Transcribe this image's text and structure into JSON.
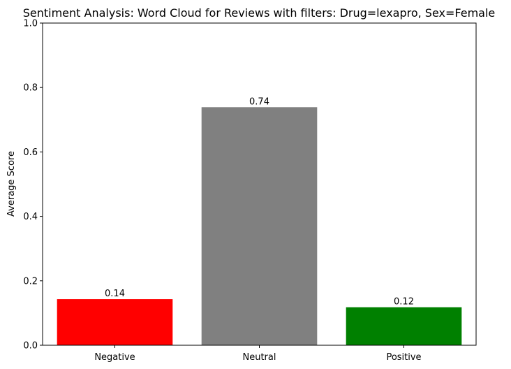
{
  "chart_data": {
    "type": "bar",
    "title": "Sentiment Analysis: Word Cloud for Reviews with filters: Drug=lexapro, Sex=Female",
    "xlabel": "",
    "ylabel": "Average Score",
    "categories": [
      "Negative",
      "Neutral",
      "Positive"
    ],
    "values": [
      0.143,
      0.739,
      0.118
    ],
    "value_labels": [
      "0.14",
      "0.74",
      "0.12"
    ],
    "colors": [
      "#ff0000",
      "#808080",
      "#008000"
    ],
    "ylim": [
      0,
      1
    ],
    "yticks": [
      0.0,
      0.2,
      0.4,
      0.6,
      0.8,
      1.0
    ],
    "ytick_labels": [
      "0.0",
      "0.2",
      "0.4",
      "0.6",
      "0.8",
      "1.0"
    ],
    "grid": false,
    "legend": "none"
  }
}
